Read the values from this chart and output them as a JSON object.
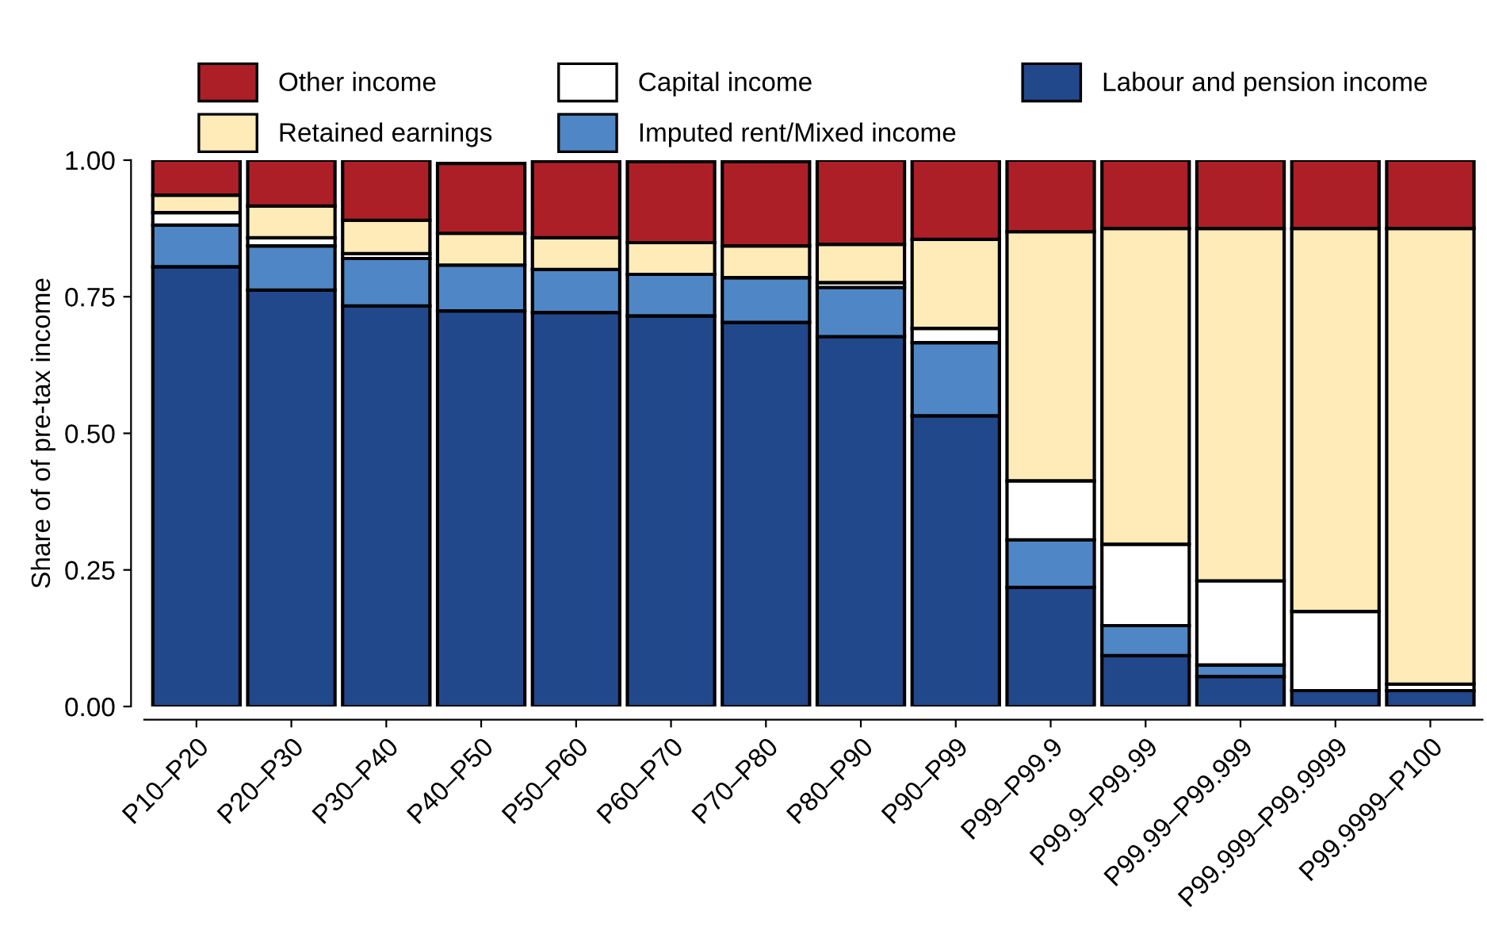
{
  "chart_data": {
    "type": "bar",
    "stacked": true,
    "ylabel": "Share of of pre-tax income",
    "categories": [
      "P10–P20",
      "P20–P30",
      "P30–P40",
      "P40–P50",
      "P50–P60",
      "P60–P70",
      "P70–P80",
      "P80–P90",
      "P90–P99",
      "P99–P99.9",
      "P99.9–P99.99",
      "P99.99–P99.999",
      "P99.999–P99.9999",
      "P99.9999–P100"
    ],
    "series": [
      {
        "name": "Labour and pension income",
        "color": "#22488c",
        "values": [
          0.805,
          0.762,
          0.733,
          0.724,
          0.721,
          0.715,
          0.703,
          0.677,
          0.532,
          0.218,
          0.093,
          0.055,
          0.029,
          0.029
        ]
      },
      {
        "name": "Imputed rent/Mixed income",
        "color": "#4f86c6",
        "values": [
          0.076,
          0.081,
          0.087,
          0.084,
          0.079,
          0.076,
          0.082,
          0.09,
          0.134,
          0.087,
          0.055,
          0.021,
          0.0,
          0.0
        ]
      },
      {
        "name": "Capital income",
        "color": "#ffffff",
        "values": [
          0.023,
          0.015,
          0.009,
          null,
          null,
          null,
          null,
          0.009,
          0.026,
          0.108,
          0.149,
          0.154,
          0.145,
          0.012
        ]
      },
      {
        "name": "Retained earnings",
        "color": "#ffebb8",
        "values": [
          0.032,
          0.058,
          0.061,
          0.058,
          0.058,
          0.058,
          0.058,
          0.07,
          0.163,
          0.456,
          0.578,
          0.645,
          0.701,
          0.834
        ]
      },
      {
        "name": "Other income",
        "color": "#ad1f27",
        "values": [
          0.064,
          0.084,
          0.11,
          0.128,
          0.14,
          0.148,
          0.154,
          0.154,
          0.145,
          0.131,
          0.125,
          0.125,
          0.125,
          0.125
        ]
      }
    ],
    "ylim": [
      0,
      1
    ],
    "yticks": [
      {
        "value": 0,
        "label": "0.00"
      },
      {
        "value": 0.25,
        "label": "0.25"
      },
      {
        "value": 0.5,
        "label": "0.50"
      },
      {
        "value": 0.75,
        "label": "0.75"
      },
      {
        "value": 1,
        "label": "1.00"
      }
    ],
    "grid": false,
    "legend": "top"
  }
}
